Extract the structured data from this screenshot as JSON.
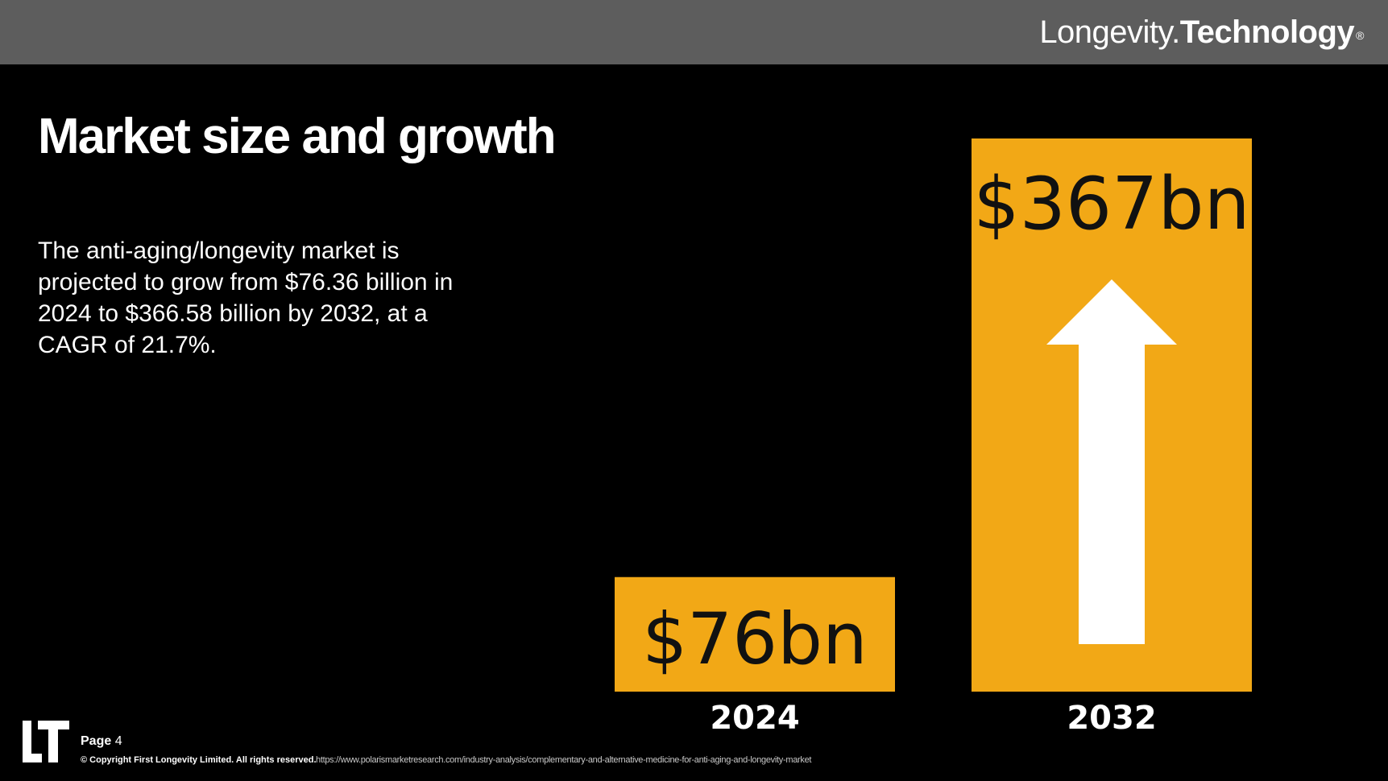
{
  "header": {
    "brand_regular": "Longevity.",
    "brand_bold": "Technology",
    "brand_mark": "®"
  },
  "slide": {
    "title": "Market size and growth",
    "description": "The anti-aging/longevity market is projected to grow from $76.36 billion in 2024 to $366.58 billion by 2032, at a CAGR of 21.7%."
  },
  "chart_data": {
    "type": "bar",
    "categories": [
      "2024",
      "2032"
    ],
    "values": [
      76,
      367
    ],
    "data_labels": [
      "$76bn",
      "$367bn"
    ],
    "units": "bn",
    "title": "",
    "xlabel": "",
    "ylabel": "",
    "ylim": [
      0,
      367
    ],
    "grid": false,
    "bar_color": "#f2a816",
    "label_color": "#111111",
    "annotation": "up-arrow",
    "arrow_color": "#ffffff"
  },
  "footer": {
    "page_label": "Page",
    "page_number": "4",
    "copyright": "© Copyright First Longevity Limited. All rights reserved.",
    "source": "https://www.polarismarketresearch.com/industry-analysis/complementary-and-alternative-medicine-for-anti-aging-and-longevity-market",
    "logo_icon": "lt-logo-icon"
  }
}
